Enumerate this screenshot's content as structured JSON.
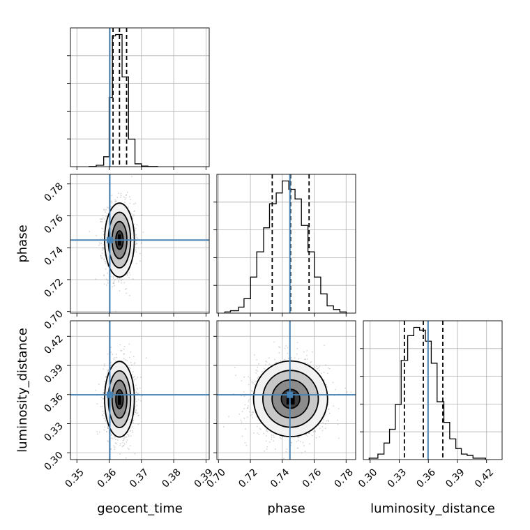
{
  "chart_data": {
    "type": "corner",
    "parameters": [
      "geocent_time",
      "phase",
      "luminosity_distance"
    ],
    "axis_labels": {
      "bottom": [
        "geocent_time",
        "phase",
        "luminosity_distance"
      ],
      "left": [
        "phase",
        "luminosity_distance"
      ]
    },
    "axes": {
      "geocent_time": {
        "range": [
          0.348,
          0.391
        ],
        "ticks": [
          0.35,
          0.36,
          0.37,
          0.38,
          0.39
        ],
        "tick_labels": [
          "0.35",
          "0.36",
          "0.37",
          "0.38",
          "0.39"
        ]
      },
      "phase": {
        "range": [
          0.699,
          0.786
        ],
        "ticks": [
          0.7,
          0.72,
          0.74,
          0.76,
          0.78
        ],
        "tick_labels": [
          "0.70",
          "0.72",
          "0.74",
          "0.76",
          "0.78"
        ]
      },
      "luminosity_distance": {
        "range": [
          0.293,
          0.436
        ],
        "ticks": [
          0.3,
          0.33,
          0.36,
          0.39,
          0.42
        ],
        "tick_labels": [
          "0.30",
          "0.33",
          "0.36",
          "0.39",
          "0.42"
        ]
      }
    },
    "truths": {
      "geocent_time": 0.3602,
      "phase": 0.7448,
      "luminosity_distance": 0.3597
    },
    "quantiles": {
      "geocent_time": [
        0.3612,
        0.3632,
        0.3654
      ],
      "phase": [
        0.7337,
        0.7452,
        0.7568
      ],
      "luminosity_distance": [
        0.3353,
        0.3548,
        0.3749
      ]
    },
    "histograms": {
      "geocent_time": {
        "bin_edges": [
          0.3538,
          0.356,
          0.3583,
          0.36,
          0.361,
          0.362,
          0.364,
          0.366,
          0.368,
          0.37,
          0.372,
          0.375
        ],
        "counts": [
          1,
          10,
          70,
          490,
          925,
          935,
          635,
          195,
          20,
          4,
          1
        ]
      },
      "phase": {
        "bin_edges": [
          0.704,
          0.7075,
          0.7126,
          0.716,
          0.7201,
          0.724,
          0.7283,
          0.732,
          0.7362,
          0.74,
          0.7441,
          0.748,
          0.752,
          0.7561,
          0.7601,
          0.7641,
          0.7681,
          0.7721,
          0.7761,
          0.7801
        ],
        "counts": [
          1,
          2,
          5,
          12,
          30,
          51,
          71,
          91,
          100,
          110,
          103,
          95,
          73,
          51,
          30,
          16,
          6,
          3,
          1
        ]
      },
      "luminosity_distance": {
        "bin_edges": [
          0.299,
          0.308,
          0.3143,
          0.32,
          0.326,
          0.332,
          0.3387,
          0.345,
          0.351,
          0.357,
          0.363,
          0.369,
          0.376,
          0.382,
          0.3883,
          0.394,
          0.4,
          0.406,
          0.412,
          0.419
        ],
        "counts": [
          1,
          4,
          12,
          22,
          40,
          72,
          90,
          96,
          94,
          86,
          70,
          42,
          27,
          15,
          8,
          4,
          3,
          1,
          1
        ]
      }
    },
    "pair_panels": [
      {
        "x": "geocent_time",
        "y": "phase",
        "center": [
          0.3632,
          0.7448
        ],
        "spread": [
          0.0023,
          0.0116
        ],
        "corr": 0.0
      },
      {
        "x": "geocent_time",
        "y": "luminosity_distance",
        "center": [
          0.3632,
          0.3552
        ],
        "spread": [
          0.0023,
          0.0195
        ],
        "corr": 0.0
      },
      {
        "x": "phase",
        "y": "luminosity_distance",
        "center": [
          0.7452,
          0.3556
        ],
        "spread": [
          0.0116,
          0.0195
        ],
        "corr": 0.0
      }
    ],
    "contour_levels_sigma": [
      0.5,
      1.0,
      1.5,
      2.0
    ],
    "colors": {
      "truth": "#4682b4",
      "hist": "#000000",
      "contour": "#000000",
      "points": "#808080",
      "grid": "#b0b0b0"
    },
    "grid": true
  }
}
